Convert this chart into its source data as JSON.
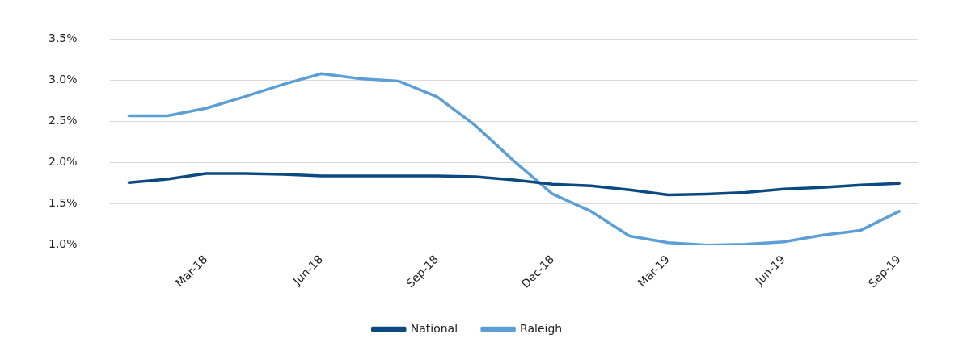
{
  "chart_data": {
    "type": "line",
    "categories": [
      null,
      null,
      "Mar-18",
      null,
      null,
      "Jun-18",
      null,
      null,
      "Sep-18",
      null,
      null,
      "Dec-18",
      null,
      null,
      "Mar-19",
      null,
      null,
      "Jun-19",
      null,
      null,
      "Sep-19"
    ],
    "series": [
      {
        "name": "National",
        "color": "#0b4a80",
        "values": [
          1.76,
          1.8,
          1.87,
          1.87,
          1.86,
          1.84,
          1.84,
          1.84,
          1.84,
          1.83,
          1.79,
          1.74,
          1.72,
          1.67,
          1.61,
          1.62,
          1.64,
          1.68,
          1.7,
          1.73,
          1.75
        ]
      },
      {
        "name": "Raleigh",
        "color": "#5b9fd6",
        "values": [
          2.57,
          2.57,
          2.66,
          2.8,
          2.95,
          3.08,
          3.02,
          2.99,
          2.8,
          2.45,
          2.02,
          1.62,
          1.41,
          1.11,
          1.03,
          1.0,
          1.01,
          1.04,
          1.12,
          1.18,
          1.41
        ]
      }
    ],
    "ylim": [
      1.0,
      3.5
    ],
    "yticks": [
      {
        "value": 1.0,
        "label": "1.0%"
      },
      {
        "value": 1.5,
        "label": "1.5%"
      },
      {
        "value": 2.0,
        "label": "2.0%"
      },
      {
        "value": 2.5,
        "label": "2.5%"
      },
      {
        "value": 3.0,
        "label": "3.0%"
      },
      {
        "value": 3.5,
        "label": "3.5%"
      }
    ],
    "grid": "y",
    "legend": "bottom",
    "marker": "none",
    "line_style": "solid"
  }
}
